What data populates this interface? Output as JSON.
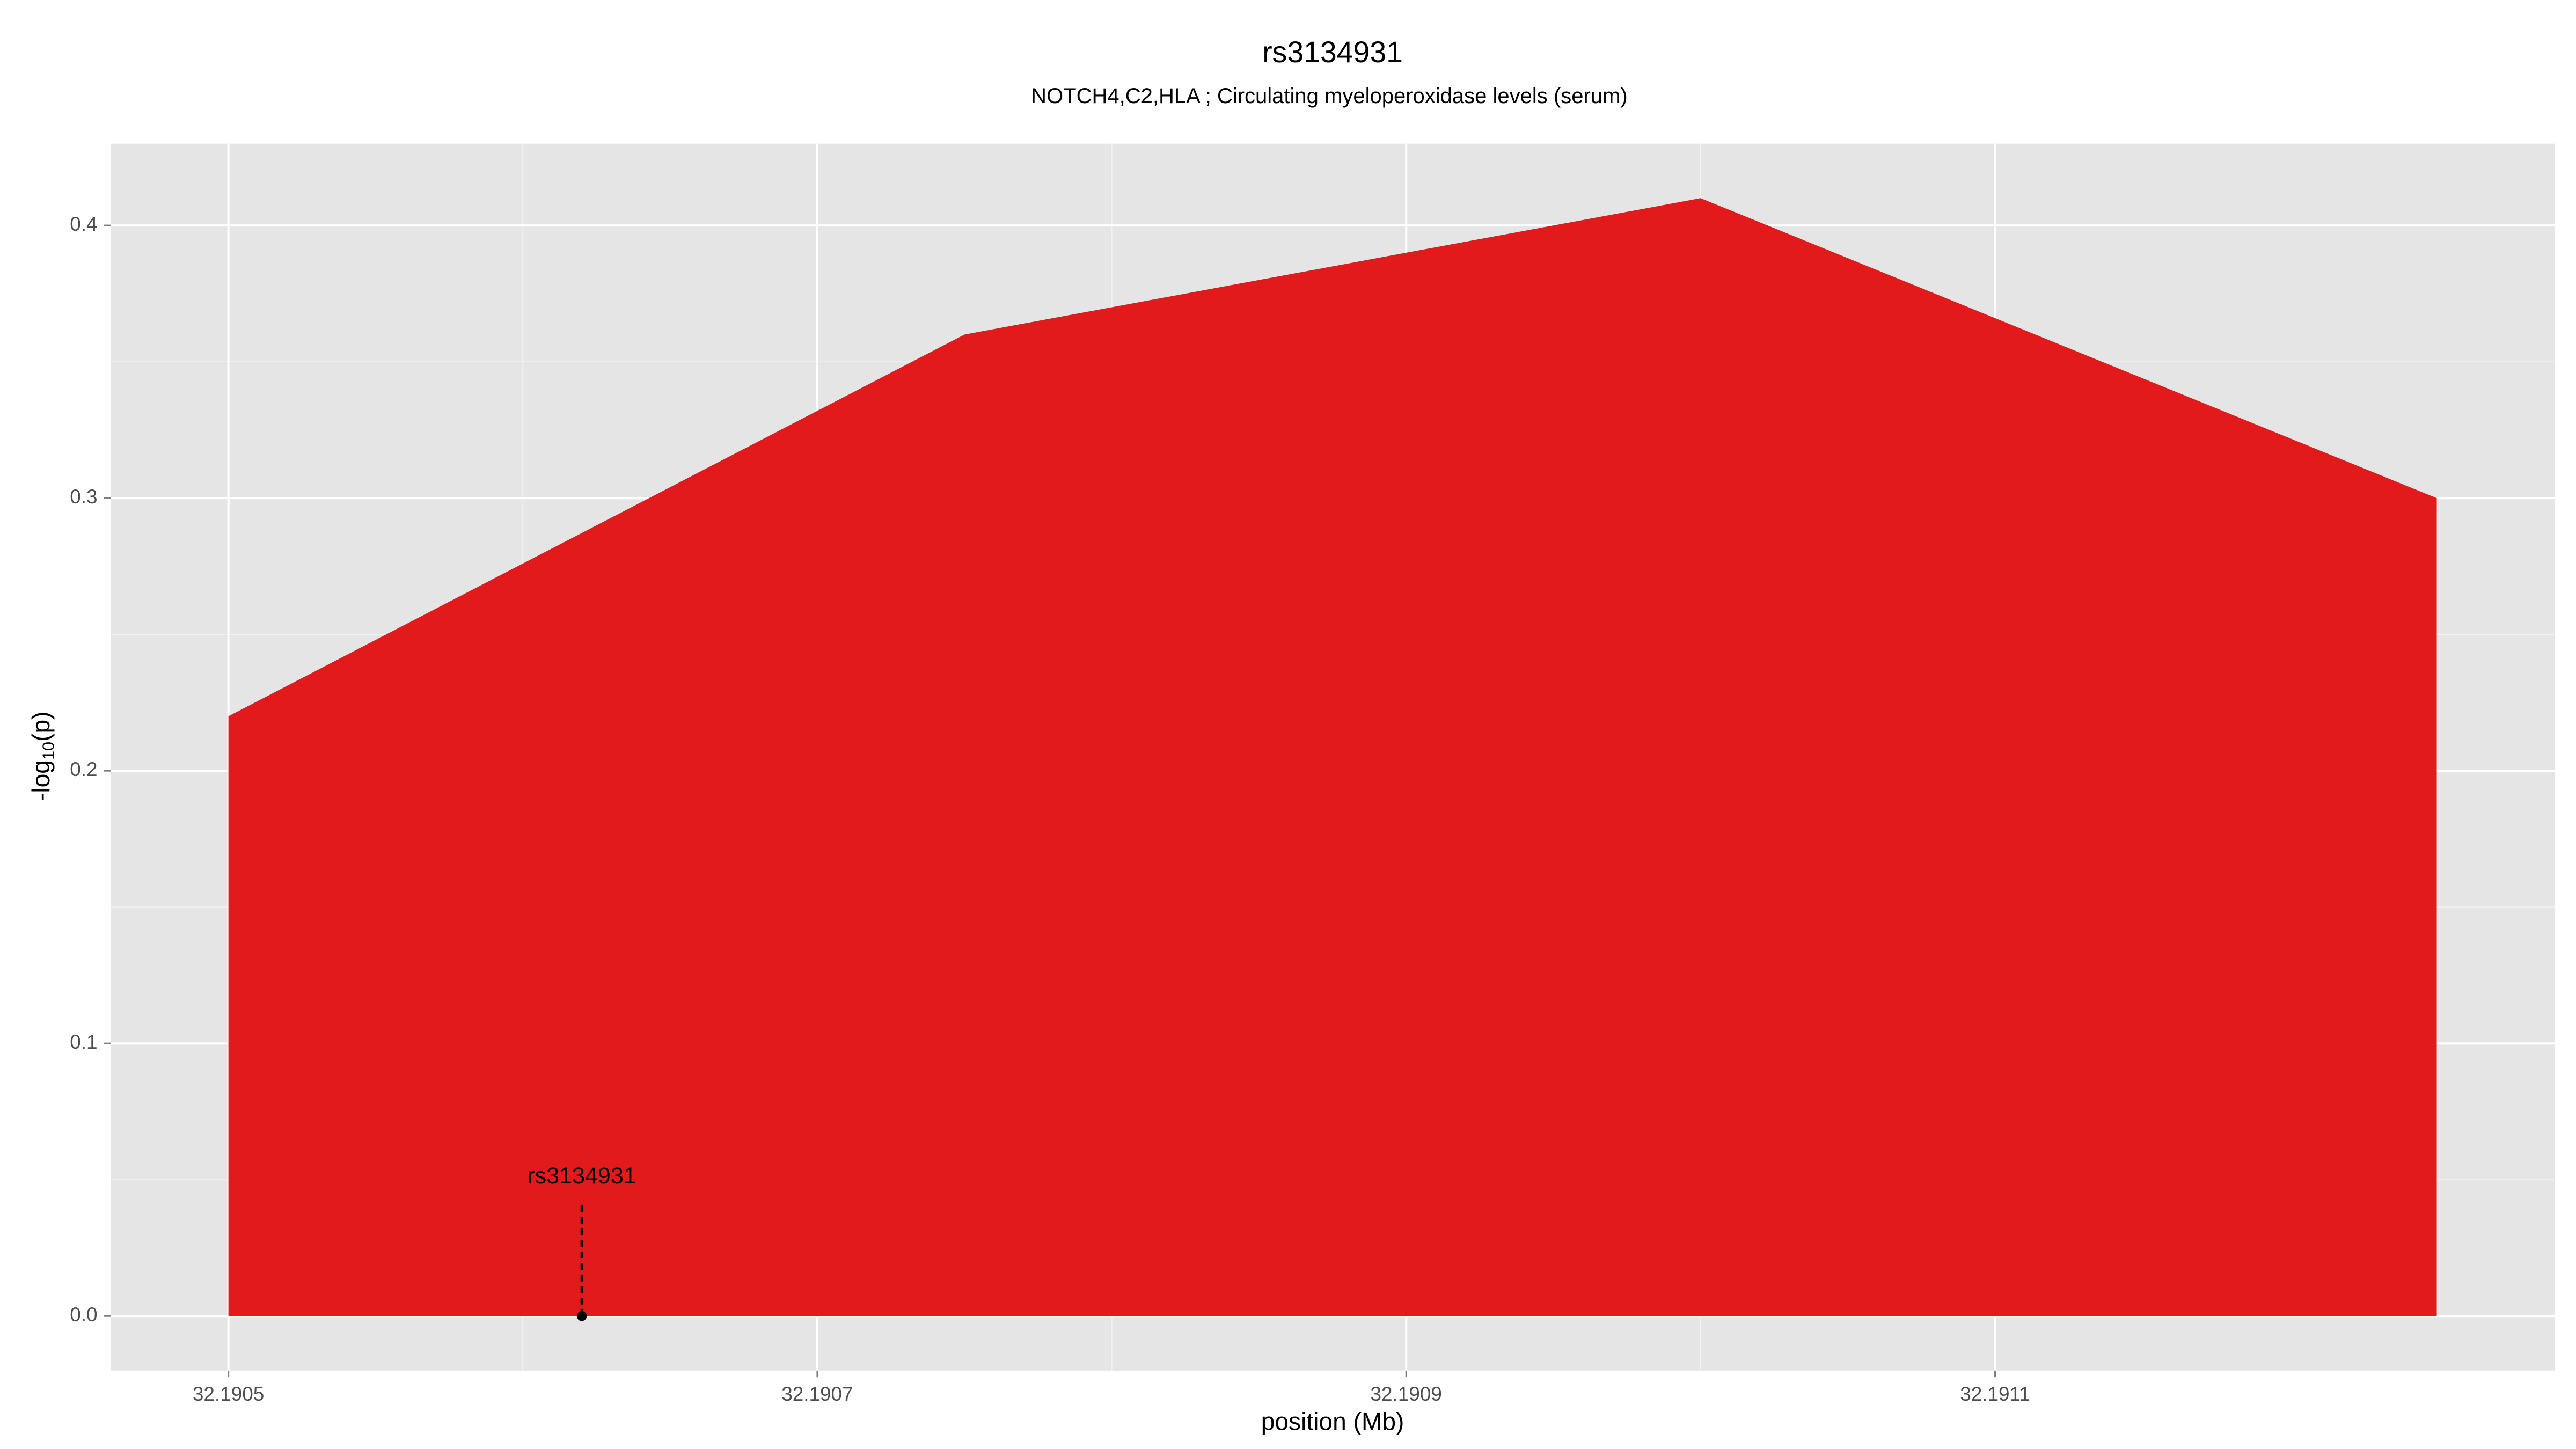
{
  "chart_data": {
    "type": "area",
    "title": "rs3134931",
    "subtitle": "NOTCH4,C2,HLA ; Circulating myeloperoxidase levels (serum)",
    "x_label": "position (Mb)",
    "y_label": [
      "-log",
      "10",
      "(p)"
    ],
    "x": [
      32.1905,
      32.19075,
      32.191,
      32.19125
    ],
    "values": [
      0.22,
      0.36,
      0.41,
      0.3
    ],
    "color": "#e31a1c",
    "xlim": [
      32.19046,
      32.19129
    ],
    "ylim": [
      -0.02,
      0.43
    ],
    "xticks": [
      32.1905,
      32.1907,
      32.1909,
      32.1911
    ],
    "yticks": [
      {
        "value": 0,
        "label": "0.0"
      },
      0.1,
      0.2,
      0.3,
      0.4
    ],
    "grid": true,
    "annotation": {
      "text": "rs3134931",
      "x": 32.19062,
      "y": 0
    }
  }
}
